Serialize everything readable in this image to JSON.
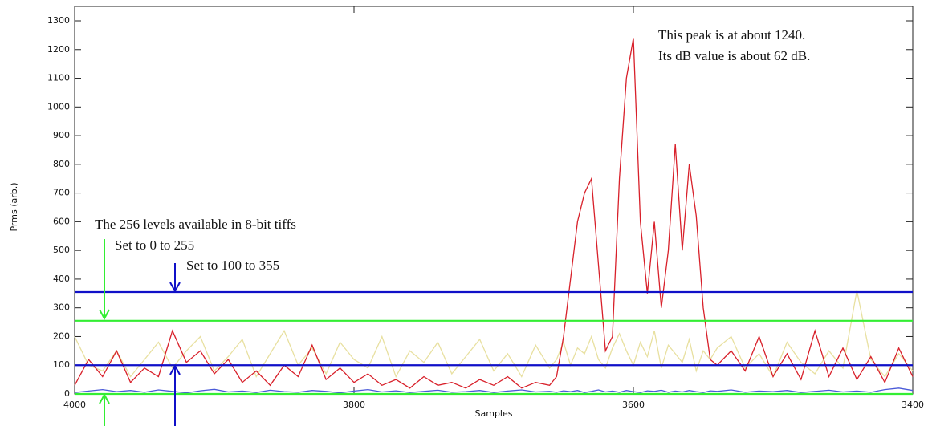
{
  "chart_data": {
    "type": "line",
    "xlabel": "Samples",
    "ylabel": "Prms (arb.)",
    "xlim": [
      4000,
      3400
    ],
    "ylim": [
      0,
      1300
    ],
    "xticks": [
      4000,
      3800,
      3600,
      3400
    ],
    "yticks": [
      0,
      100,
      200,
      300,
      400,
      500,
      600,
      700,
      800,
      900,
      1000,
      1100,
      1200,
      1300
    ],
    "x": [
      4000,
      3990,
      3980,
      3970,
      3960,
      3950,
      3940,
      3930,
      3920,
      3910,
      3900,
      3890,
      3880,
      3870,
      3860,
      3850,
      3840,
      3830,
      3820,
      3810,
      3800,
      3790,
      3780,
      3770,
      3760,
      3750,
      3740,
      3730,
      3720,
      3710,
      3700,
      3690,
      3680,
      3670,
      3660,
      3655,
      3650,
      3645,
      3640,
      3635,
      3630,
      3625,
      3620,
      3615,
      3610,
      3605,
      3600,
      3595,
      3590,
      3585,
      3580,
      3575,
      3570,
      3565,
      3560,
      3555,
      3550,
      3545,
      3540,
      3530,
      3520,
      3510,
      3500,
      3490,
      3480,
      3470,
      3460,
      3450,
      3440,
      3430,
      3420,
      3410,
      3400
    ],
    "series": [
      {
        "color": "#e8e0a0",
        "values": [
          200,
          100,
          80,
          150,
          60,
          120,
          180,
          90,
          150,
          200,
          80,
          130,
          190,
          60,
          140,
          220,
          100,
          160,
          70,
          180,
          120,
          90,
          200,
          60,
          150,
          110,
          180,
          70,
          130,
          190,
          80,
          140,
          60,
          170,
          90,
          120,
          180,
          100,
          160,
          140,
          200,
          120,
          90,
          160,
          210,
          150,
          100,
          180,
          130,
          220,
          90,
          170,
          140,
          110,
          190,
          80,
          150,
          120,
          160,
          200,
          90,
          140,
          60,
          180,
          110,
          70,
          150,
          90,
          360,
          120,
          60,
          140,
          80
        ]
      },
      {
        "color": "#4a5ad8",
        "values": [
          5,
          10,
          15,
          8,
          12,
          6,
          14,
          9,
          4,
          11,
          16,
          7,
          10,
          5,
          13,
          8,
          6,
          12,
          9,
          4,
          10,
          15,
          7,
          11,
          5,
          9,
          13,
          6,
          8,
          12,
          5,
          10,
          14,
          7,
          9,
          6,
          11,
          8,
          12,
          5,
          9,
          14,
          7,
          10,
          6,
          12,
          8,
          5,
          11,
          9,
          13,
          6,
          10,
          7,
          12,
          8,
          5,
          11,
          9,
          14,
          6,
          10,
          8,
          12,
          5,
          9,
          13,
          7,
          10,
          6,
          15,
          20,
          12
        ]
      },
      {
        "color": "#d8202a",
        "values": [
          30,
          120,
          60,
          150,
          40,
          90,
          60,
          220,
          110,
          150,
          70,
          120,
          40,
          80,
          30,
          100,
          60,
          170,
          50,
          90,
          40,
          70,
          30,
          50,
          20,
          60,
          30,
          40,
          20,
          50,
          30,
          60,
          20,
          40,
          30,
          60,
          200,
          400,
          600,
          700,
          750,
          450,
          150,
          200,
          750,
          1100,
          1240,
          600,
          350,
          600,
          300,
          500,
          870,
          500,
          800,
          620,
          300,
          120,
          100,
          150,
          80,
          200,
          60,
          140,
          50,
          220,
          60,
          160,
          50,
          130,
          40,
          160,
          60
        ]
      }
    ],
    "reference_lines": [
      {
        "value": 0,
        "color": "#33ee33"
      },
      {
        "value": 100,
        "color": "#1010c8"
      },
      {
        "value": 255,
        "color": "#33ee33"
      },
      {
        "value": 355,
        "color": "#1010c8"
      }
    ],
    "annotations": [
      "This peak is at about 1240.",
      "Its dB value is about 62 dB.",
      "The 256 levels available in 8-bit tiffs",
      "Set to 0 to 255",
      "Set to 100 to 355"
    ]
  }
}
